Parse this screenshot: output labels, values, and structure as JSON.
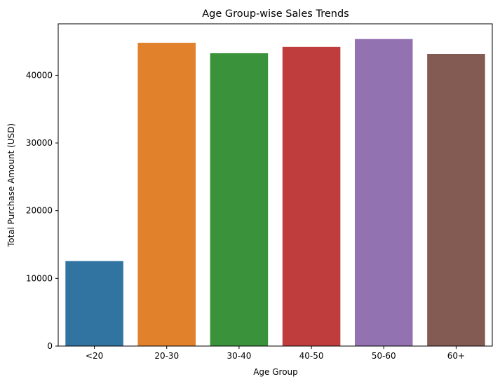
{
  "chart_data": {
    "type": "bar",
    "title": "Age Group-wise Sales Trends",
    "xlabel": "Age Group",
    "ylabel": "Total Purchase Amount (USD)",
    "categories": [
      "<20",
      "20-30",
      "30-40",
      "40-50",
      "50-60",
      "60+"
    ],
    "values": [
      12550,
      44800,
      43250,
      44200,
      45350,
      43150
    ],
    "colors": [
      "#3274a1",
      "#e1812c",
      "#3a923a",
      "#c03d3e",
      "#9372b2",
      "#845b53"
    ],
    "ylim": [
      0,
      47600
    ],
    "yticks": [
      0,
      10000,
      20000,
      30000,
      40000
    ],
    "ytick_labels": [
      "0",
      "10000",
      "20000",
      "30000",
      "40000"
    ],
    "grid": false,
    "legend": "none"
  }
}
